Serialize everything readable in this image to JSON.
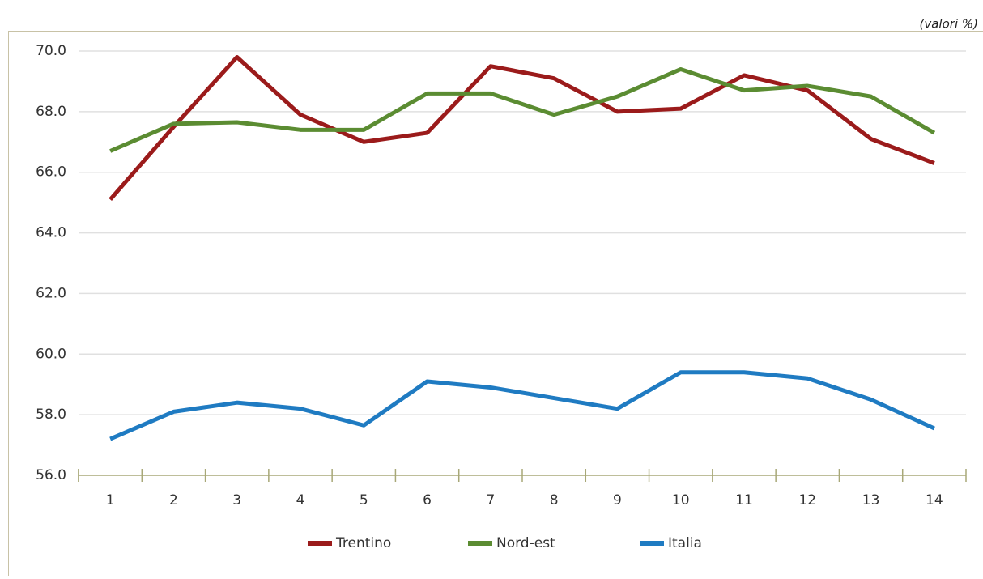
{
  "chart_data": {
    "type": "line",
    "subtitle": "(valori %)",
    "categories": [
      1,
      2,
      3,
      4,
      5,
      6,
      7,
      8,
      9,
      10,
      11,
      12,
      13,
      14
    ],
    "series": [
      {
        "name": "Trentino",
        "color": "#9b1b1b",
        "values": [
          65.1,
          67.5,
          69.8,
          67.9,
          67.0,
          67.3,
          69.5,
          69.1,
          68.0,
          68.1,
          69.2,
          68.7,
          67.1,
          66.3
        ]
      },
      {
        "name": "Nord-est",
        "color": "#5b8c32",
        "values": [
          66.7,
          67.6,
          67.65,
          67.4,
          67.4,
          68.6,
          68.6,
          67.9,
          68.5,
          69.4,
          68.7,
          68.85,
          68.5,
          67.3
        ]
      },
      {
        "name": "Italia",
        "color": "#1f7bc2",
        "values": [
          57.2,
          58.1,
          58.4,
          58.2,
          57.65,
          59.1,
          58.9,
          58.55,
          58.2,
          59.4,
          59.4,
          59.2,
          58.5,
          57.55
        ]
      }
    ],
    "ylim": [
      56,
      70
    ],
    "yticks": [
      {
        "value": 56,
        "label": "56.0"
      },
      {
        "value": 58,
        "label": "58.0"
      },
      {
        "value": 60,
        "label": "60.0"
      },
      {
        "value": 62,
        "label": "62.0"
      },
      {
        "value": 64,
        "label": "64.0"
      },
      {
        "value": 66,
        "label": "66.0"
      },
      {
        "value": 68,
        "label": "68.0"
      },
      {
        "value": 70,
        "label": "70.0"
      }
    ],
    "grid": true,
    "legend": "bottom"
  }
}
